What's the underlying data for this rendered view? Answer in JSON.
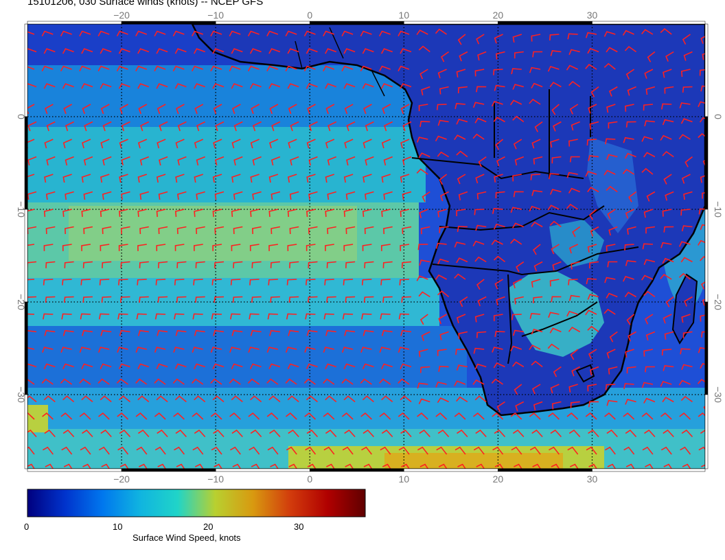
{
  "title": "15101206, 030 Surface winds (knots) -- NCEP GFS",
  "map": {
    "lon_range": [
      -30,
      42
    ],
    "lat_range": [
      -38,
      10
    ],
    "lon_ticks": [
      -20,
      -10,
      0,
      10,
      20,
      30
    ],
    "lat_ticks": [
      0,
      -10,
      -20,
      -30
    ],
    "lon_tick_labels": [
      "−20",
      "−10",
      "0",
      "10",
      "20",
      "30"
    ],
    "lat_tick_labels": [
      "0",
      "−10",
      "−20",
      "−30"
    ],
    "grid": "dotted",
    "barb_color": "#ff2020",
    "coast_color": "#000000"
  },
  "colorbar": {
    "label": "Surface Wind Speed, knots",
    "range": [
      0,
      36
    ],
    "tick_values": [
      0,
      10,
      20,
      30
    ],
    "tick_labels": [
      "0",
      "10",
      "20",
      "30"
    ],
    "colors": [
      "#00007f",
      "#0033cc",
      "#0077ee",
      "#10b4e0",
      "#20d4c8",
      "#b8d030",
      "#d89a10",
      "#d23c0c",
      "#b00000",
      "#600000"
    ]
  }
}
